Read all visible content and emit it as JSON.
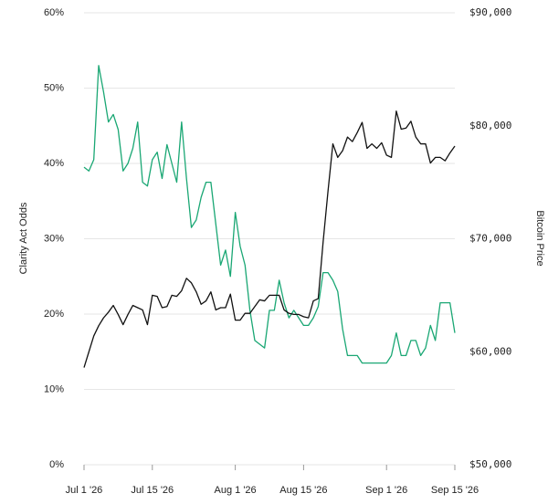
{
  "chart_data": {
    "type": "line",
    "y_label": "Clarity Act Odds",
    "y2_label": "Bitcoin Price",
    "x": [
      "2026-07-01",
      "2026-07-02",
      "2026-07-03",
      "2026-07-04",
      "2026-07-05",
      "2026-07-06",
      "2026-07-07",
      "2026-07-08",
      "2026-07-09",
      "2026-07-10",
      "2026-07-11",
      "2026-07-12",
      "2026-07-13",
      "2026-07-14",
      "2026-07-15",
      "2026-07-16",
      "2026-07-17",
      "2026-07-18",
      "2026-07-19",
      "2026-07-20",
      "2026-07-21",
      "2026-07-22",
      "2026-07-23",
      "2026-07-24",
      "2026-07-25",
      "2026-07-26",
      "2026-07-27",
      "2026-07-28",
      "2026-07-29",
      "2026-07-30",
      "2026-07-31",
      "2026-08-01",
      "2026-08-02",
      "2026-08-03",
      "2026-08-04",
      "2026-08-05",
      "2026-08-06",
      "2026-08-07",
      "2026-08-08",
      "2026-08-09",
      "2026-08-10",
      "2026-08-11",
      "2026-08-12",
      "2026-08-13",
      "2026-08-14",
      "2026-08-15",
      "2026-08-16",
      "2026-08-17",
      "2026-08-18",
      "2026-08-19",
      "2026-08-20",
      "2026-08-21",
      "2026-08-22",
      "2026-08-23",
      "2026-08-24",
      "2026-08-25",
      "2026-08-26",
      "2026-08-27",
      "2026-08-28",
      "2026-08-29",
      "2026-08-30",
      "2026-08-31",
      "2026-09-01",
      "2026-09-02",
      "2026-09-03",
      "2026-09-04",
      "2026-09-05",
      "2026-09-06",
      "2026-09-07",
      "2026-09-08",
      "2026-09-09",
      "2026-09-10",
      "2026-09-11",
      "2026-09-12",
      "2026-09-13",
      "2026-09-14",
      "2026-09-15"
    ],
    "series": [
      {
        "color": "#1aa774",
        "axis": "y",
        "values": [
          39.5,
          39,
          40.5,
          53,
          49.5,
          45.5,
          46.5,
          44.5,
          39,
          40,
          42,
          45.5,
          37.5,
          37,
          40.5,
          41.5,
          38,
          42.5,
          40,
          37.5,
          45.5,
          38,
          31.5,
          32.5,
          35.5,
          37.5,
          37.5,
          32,
          26.5,
          28.5,
          25,
          33.5,
          29,
          26.5,
          20.5,
          16.5,
          16,
          15.5,
          20.5,
          20.5,
          24.5,
          21.5,
          19.5,
          20.5,
          19.5,
          18.5,
          18.5,
          19.5,
          21,
          25.5,
          25.5,
          24.5,
          23,
          18,
          14.5,
          14.5,
          14.5,
          13.5,
          13.5,
          13.5,
          13.5,
          13.5,
          13.5,
          14.5,
          17.5,
          14.5,
          14.5,
          16.5,
          16.5,
          14.5,
          15.5,
          18.5,
          16.5,
          21.5,
          21.5,
          21.5,
          17.5
        ]
      },
      {
        "color": "#111111",
        "axis": "y2",
        "values": [
          58600,
          60000,
          61400,
          62300,
          63000,
          63500,
          64100,
          63300,
          62400,
          63300,
          64100,
          63900,
          63700,
          62400,
          65000,
          64900,
          63900,
          64000,
          65000,
          64900,
          65400,
          66500,
          66100,
          65300,
          64200,
          64500,
          65300,
          63700,
          63900,
          63900,
          65100,
          62800,
          62800,
          63400,
          63400,
          64000,
          64600,
          64500,
          65000,
          65000,
          65000,
          63700,
          63400,
          63300,
          63300,
          63100,
          63000,
          64500,
          64700,
          69700,
          74200,
          78400,
          77200,
          77800,
          79000,
          78600,
          79400,
          80300,
          78000,
          78400,
          78000,
          78500,
          77400,
          77200,
          81300,
          79700,
          79800,
          80400,
          79000,
          78400,
          78400,
          76700,
          77200,
          77200,
          76900,
          77600,
          78200
        ]
      }
    ],
    "xlim": [
      "2026-07-01",
      "2026-09-15"
    ],
    "xticks": [
      {
        "value": "2026-07-01",
        "label": "Jul 1 '26"
      },
      {
        "value": "2026-07-15",
        "label": "Jul 15 '26"
      },
      {
        "value": "2026-08-01",
        "label": "Aug 1 '26"
      },
      {
        "value": "2026-08-15",
        "label": "Aug 15 '26"
      },
      {
        "value": "2026-09-01",
        "label": "Sep 1 '26"
      },
      {
        "value": "2026-09-15",
        "label": "Sep 15 '26"
      }
    ],
    "ylim": [
      0,
      60
    ],
    "yticks": [
      {
        "value": 0,
        "label": "0%"
      },
      {
        "value": 10,
        "label": "10%"
      },
      {
        "value": 20,
        "label": "20%"
      },
      {
        "value": 30,
        "label": "30%"
      },
      {
        "value": 40,
        "label": "40%"
      },
      {
        "value": 50,
        "label": "50%"
      },
      {
        "value": 60,
        "label": "60%"
      }
    ],
    "y2lim": [
      50000,
      90000
    ],
    "y2ticks": [
      {
        "value": 50000,
        "label": "$50,000"
      },
      {
        "value": 60000,
        "label": "$60,000"
      },
      {
        "value": 70000,
        "label": "$70,000"
      },
      {
        "value": 80000,
        "label": "$80,000"
      },
      {
        "value": 90000,
        "label": "$90,000"
      }
    ],
    "grid": true
  }
}
